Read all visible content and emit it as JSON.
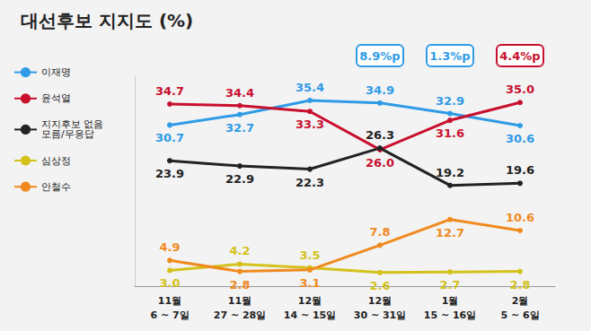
{
  "chart_data": {
    "type": "line",
    "title": "대선후보 지지도 (%)",
    "categories": [
      "11월\n6 ~ 7일",
      "11월\n27 ~ 28일",
      "12월\n14 ~ 15일",
      "12월\n30 ~ 31일",
      "1월\n15 ~ 16일",
      "2월\n5 ~ 6일"
    ],
    "series": [
      {
        "name": "이재명",
        "color": "#2f9be6",
        "values": [
          30.7,
          32.7,
          35.4,
          34.9,
          32.9,
          30.6
        ]
      },
      {
        "name": "윤석열",
        "color": "#c8102e",
        "values": [
          34.7,
          34.4,
          33.3,
          26,
          31.6,
          35
        ],
        "value_labels": [
          "34.7",
          "34.4",
          "33.3",
          "26.0",
          "31.6",
          "35.0"
        ]
      },
      {
        "name": "지지후보 없음\n모름/무응답",
        "color": "#222222",
        "values": [
          23.9,
          22.9,
          22.3,
          26.3,
          19.2,
          19.6
        ]
      },
      {
        "name": "심상정",
        "color": "#d4c21c",
        "values": [
          3,
          4.2,
          3.5,
          2.6,
          2.7,
          2.8
        ],
        "value_labels": [
          "3.0",
          "4.2",
          "3.5",
          "2.6",
          "2.7",
          "2.8"
        ]
      },
      {
        "name": "안철수",
        "color": "#f08a1e",
        "values": [
          4.9,
          2.8,
          3.1,
          7.8,
          12.7,
          10.6
        ]
      }
    ],
    "annotations": [
      {
        "category": "12월\n30 ~ 31일",
        "text": "8.9%p",
        "color": "#2f9be6"
      },
      {
        "category": "1월\n15 ~ 16일",
        "text": "1.3%p",
        "color": "#2f9be6"
      },
      {
        "category": "2월\n5 ~ 6일",
        "text": "4.4%p",
        "color": "#c8102e"
      }
    ],
    "ylim": [
      0,
      40
    ],
    "tick_labels": "x",
    "data_labels": true,
    "legend": "left",
    "grid": false,
    "marker": "circle"
  }
}
